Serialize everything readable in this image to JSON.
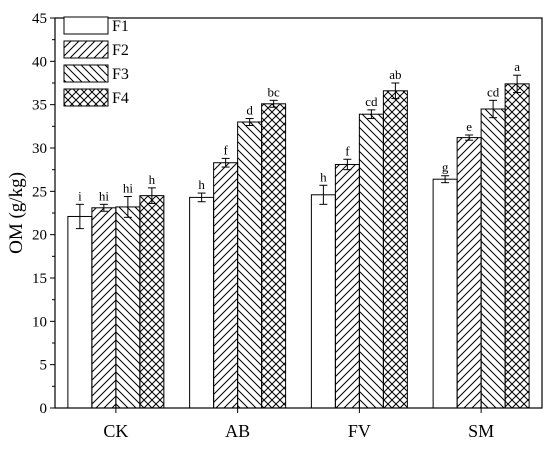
{
  "chart_data": {
    "type": "bar",
    "title": "",
    "xlabel": "",
    "ylabel": "OM (g/kg)",
    "ylim": [
      0,
      45
    ],
    "yticks": [
      0,
      5,
      10,
      15,
      20,
      25,
      30,
      35,
      40,
      45
    ],
    "grid": false,
    "legend_position": "top-left",
    "categories": [
      "CK",
      "AB",
      "FV",
      "SM"
    ],
    "series": [
      {
        "name": "F1",
        "pattern": "none",
        "values": [
          22.1,
          24.3,
          24.6,
          26.4
        ],
        "errors": [
          1.4,
          0.5,
          1.1,
          0.4
        ],
        "letters": [
          "i",
          "h",
          "h",
          "g"
        ]
      },
      {
        "name": "F2",
        "pattern": "diagonal-up",
        "values": [
          23.1,
          28.3,
          28.1,
          31.2
        ],
        "errors": [
          0.4,
          0.5,
          0.6,
          0.3
        ],
        "letters": [
          "hi",
          "f",
          "f",
          "e"
        ]
      },
      {
        "name": "F3",
        "pattern": "diagonal-down",
        "values": [
          23.2,
          33.0,
          33.9,
          34.5
        ],
        "errors": [
          1.2,
          0.4,
          0.5,
          1.0
        ],
        "letters": [
          "hi",
          "d",
          "cd",
          "cd"
        ]
      },
      {
        "name": "F4",
        "pattern": "crosshatch",
        "values": [
          24.5,
          35.1,
          36.6,
          37.4
        ],
        "errors": [
          0.9,
          0.4,
          0.9,
          1.0
        ],
        "letters": [
          "h",
          "bc",
          "ab",
          "a"
        ]
      }
    ],
    "colors": {
      "bar_fill": "#ffffff",
      "stroke": "#000000"
    }
  }
}
